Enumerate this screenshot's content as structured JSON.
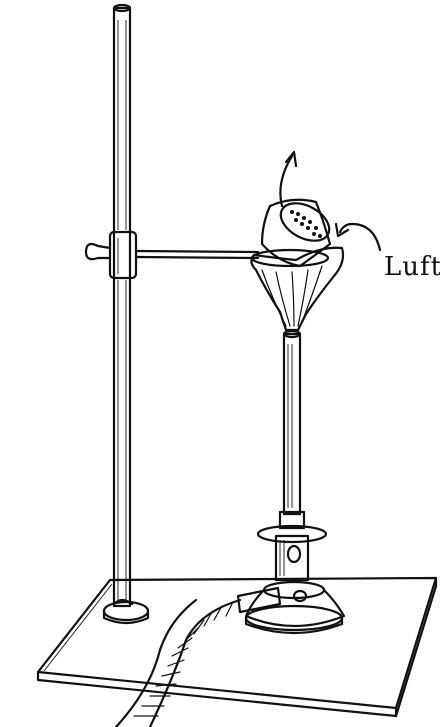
{
  "labels": {
    "air": "Luft"
  }
}
